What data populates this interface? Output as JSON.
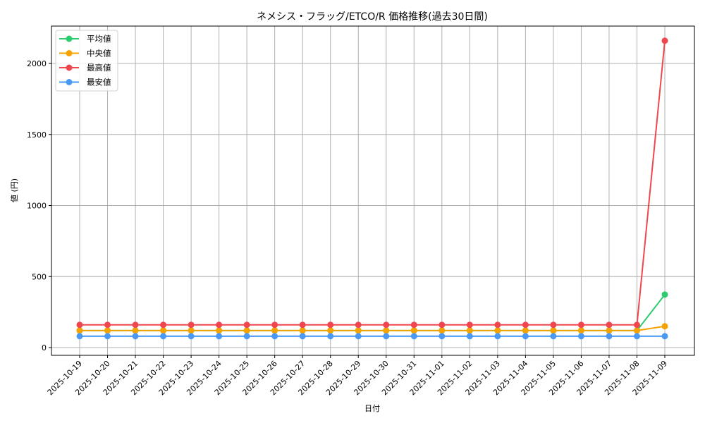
{
  "chart_data": {
    "type": "line",
    "title": "ネメシス・フラッグ/ETCO/R 価格推移(過去30日間)",
    "xlabel": "日付",
    "ylabel": "値 (円)",
    "ylim": [
      -55,
      2270
    ],
    "yticks": [
      0,
      500,
      1000,
      1500,
      2000
    ],
    "grid": true,
    "legend_position": "upper left",
    "x": [
      "2025-10-19",
      "2025-10-20",
      "2025-10-21",
      "2025-10-22",
      "2025-10-23",
      "2025-10-24",
      "2025-10-25",
      "2025-10-26",
      "2025-10-27",
      "2025-10-28",
      "2025-10-29",
      "2025-10-30",
      "2025-10-31",
      "2025-11-01",
      "2025-11-02",
      "2025-11-03",
      "2025-11-04",
      "2025-11-05",
      "2025-11-06",
      "2025-11-07",
      "2025-11-08",
      "2025-11-09"
    ],
    "series": [
      {
        "name": "平均値",
        "color": "#2ecc71",
        "values": [
          120,
          120,
          120,
          120,
          120,
          120,
          120,
          120,
          120,
          120,
          120,
          120,
          120,
          120,
          120,
          120,
          120,
          120,
          120,
          120,
          120,
          373
        ]
      },
      {
        "name": "中央値",
        "color": "#f5a300",
        "values": [
          120,
          120,
          120,
          120,
          120,
          120,
          120,
          120,
          120,
          120,
          120,
          120,
          120,
          120,
          120,
          120,
          120,
          120,
          120,
          120,
          120,
          150
        ]
      },
      {
        "name": "最高値",
        "color": "#f0474f",
        "values": [
          160,
          160,
          160,
          160,
          160,
          160,
          160,
          160,
          160,
          160,
          160,
          160,
          160,
          160,
          160,
          160,
          160,
          160,
          160,
          160,
          160,
          2160
        ]
      },
      {
        "name": "最安値",
        "color": "#4a9af5",
        "values": [
          80,
          80,
          80,
          80,
          80,
          80,
          80,
          80,
          80,
          80,
          80,
          80,
          80,
          80,
          80,
          80,
          80,
          80,
          80,
          80,
          80,
          80
        ]
      }
    ]
  }
}
